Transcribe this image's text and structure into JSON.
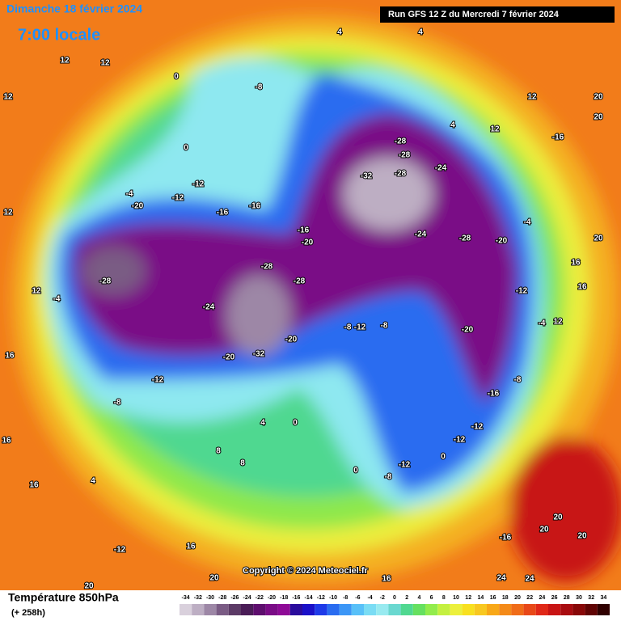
{
  "header": {
    "date": "Dimanche 18 février 2024",
    "time": "7:00 locale",
    "run": "Run GFS 12 Z du Mercredi 7 février 2024"
  },
  "footer": {
    "title": "Température 850hPa",
    "lead": "(+ 258h)",
    "copyright": "Copyright © 2024 Meteociel.fr"
  },
  "legend": {
    "ticks": [
      -34,
      -32,
      -30,
      -28,
      -26,
      -24,
      -22,
      -20,
      -18,
      -16,
      -14,
      -12,
      -10,
      -8,
      -6,
      -4,
      -2,
      0,
      2,
      4,
      6,
      8,
      10,
      12,
      14,
      16,
      18,
      20,
      22,
      24,
      26,
      28,
      30,
      32,
      34
    ],
    "colors": [
      "#d9d0dc",
      "#bdaec3",
      "#9d87a6",
      "#7a5b84",
      "#5c3a66",
      "#4a1c57",
      "#5e0e6e",
      "#7a0c86",
      "#8e0a96",
      "#2a0c9c",
      "#1a10c8",
      "#1e3ae8",
      "#2a6cf0",
      "#3c96f6",
      "#58c0f8",
      "#7adcf4",
      "#98eaf0",
      "#6ad8d0",
      "#50d890",
      "#66e060",
      "#92ec4c",
      "#c4f040",
      "#ecf03c",
      "#f8e020",
      "#f8c820",
      "#f8a818",
      "#f48a18",
      "#f06c18",
      "#e84818",
      "#e02818",
      "#c81414",
      "#a80c10",
      "#880808",
      "#600404",
      "#300000"
    ]
  },
  "contour_labels": [
    -28,
    -28,
    -28,
    -24,
    -28,
    -20,
    -20,
    -8,
    -12,
    -8,
    -20,
    -28,
    -28,
    -32,
    -24,
    -28,
    -24,
    -20,
    -32,
    -20,
    -12,
    -8,
    -16,
    -12,
    -12,
    -12,
    -8,
    -8,
    -16,
    -16,
    -16,
    -4,
    -12,
    -12,
    -20,
    -12,
    16,
    8,
    8,
    4,
    16,
    20,
    20,
    16,
    -16,
    20,
    20,
    24,
    24,
    20,
    20,
    16,
    16,
    12,
    12,
    12,
    4,
    4,
    4,
    0,
    0,
    4,
    0,
    0,
    0,
    16,
    16,
    12,
    12,
    12,
    -4,
    12,
    12,
    20,
    20,
    -16,
    -4,
    -12,
    -4,
    -8
  ]
}
